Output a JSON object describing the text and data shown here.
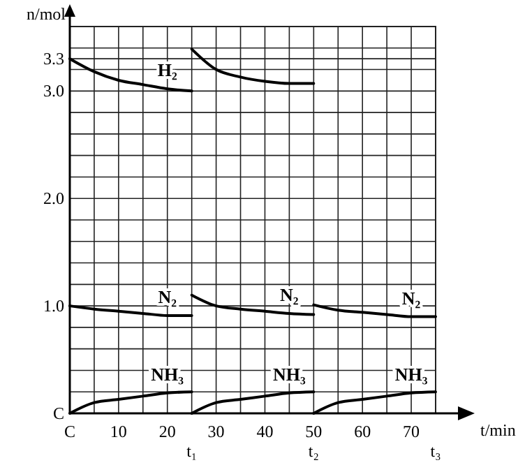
{
  "chart_data": {
    "type": "line",
    "xlabel": "t/min",
    "ylabel": "n/mol",
    "xlim": [
      0,
      75
    ],
    "ylim": [
      0,
      3.6
    ],
    "xticks": [
      {
        "value": 0,
        "label": "C"
      },
      {
        "value": 5,
        "label": null
      },
      10,
      {
        "value": 15,
        "label": null
      },
      20,
      {
        "value": 25,
        "label": null
      },
      30,
      {
        "value": 35,
        "label": null
      },
      40,
      {
        "value": 45,
        "label": null
      },
      50,
      {
        "value": 55,
        "label": null
      },
      60,
      {
        "value": 65,
        "label": null
      },
      70,
      {
        "value": 75,
        "label": null
      }
    ],
    "yticks": [
      {
        "value": 0,
        "label": "C"
      },
      {
        "value": 0.2,
        "label": null
      },
      {
        "value": 0.4,
        "label": null
      },
      {
        "value": 0.6,
        "label": null
      },
      {
        "value": 0.8,
        "label": null
      },
      {
        "value": 1,
        "label": "1.0"
      },
      {
        "value": 1.2,
        "label": null
      },
      {
        "value": 1.4,
        "label": null
      },
      {
        "value": 1.6,
        "label": null
      },
      {
        "value": 1.8,
        "label": null
      },
      {
        "value": 2,
        "label": "2.0"
      },
      {
        "value": 2.2,
        "label": null
      },
      {
        "value": 2.4,
        "label": null
      },
      {
        "value": 2.6,
        "label": null
      },
      {
        "value": 2.8,
        "label": null
      },
      {
        "value": 3,
        "label": "3.0"
      },
      {
        "value": 3.2,
        "label": null
      },
      {
        "value": 3.3,
        "label": "3.3"
      },
      {
        "value": 3.4,
        "label": null
      }
    ],
    "grid": true,
    "marker": "none",
    "line_style": "solid",
    "series": [
      {
        "name": "H₂",
        "color": "#000000",
        "x": [
          0,
          5,
          10,
          15,
          20,
          25
        ],
        "values": [
          3.3,
          3.18,
          3.1,
          3.06,
          3.02,
          3.0
        ]
      },
      {
        "color": "#000000",
        "x": [
          25,
          30,
          35,
          40,
          45,
          50
        ],
        "values": [
          3.39,
          3.2,
          3.13,
          3.09,
          3.07,
          3.07
        ]
      },
      {
        "name": "N₂",
        "color": "#000000",
        "x": [
          0,
          5,
          10,
          15,
          20,
          25
        ],
        "values": [
          1.0,
          0.97,
          0.95,
          0.93,
          0.91,
          0.91
        ]
      },
      {
        "name": "N₂",
        "color": "#000000",
        "x": [
          25,
          30,
          35,
          40,
          45,
          50
        ],
        "values": [
          1.1,
          1.0,
          0.97,
          0.95,
          0.93,
          0.92
        ]
      },
      {
        "name": "N₂",
        "color": "#000000",
        "x": [
          50,
          55,
          60,
          65,
          70,
          75
        ],
        "values": [
          1.01,
          0.96,
          0.94,
          0.92,
          0.9,
          0.9
        ]
      },
      {
        "name": "NH₃",
        "color": "#000000",
        "x": [
          0,
          5,
          10,
          15,
          20,
          25
        ],
        "values": [
          0,
          0.1,
          0.13,
          0.16,
          0.19,
          0.2
        ]
      },
      {
        "name": "NH₃",
        "color": "#000000",
        "x": [
          25,
          30,
          35,
          40,
          45,
          50
        ],
        "values": [
          0,
          0.1,
          0.13,
          0.16,
          0.19,
          0.2
        ]
      },
      {
        "name": "NH₃",
        "color": "#000000",
        "x": [
          50,
          55,
          60,
          65,
          70,
          75
        ],
        "values": [
          0,
          0.1,
          0.13,
          0.16,
          0.19,
          0.2
        ]
      }
    ],
    "annotations": [
      "t₁",
      "t₂",
      "t₃"
    ]
  }
}
